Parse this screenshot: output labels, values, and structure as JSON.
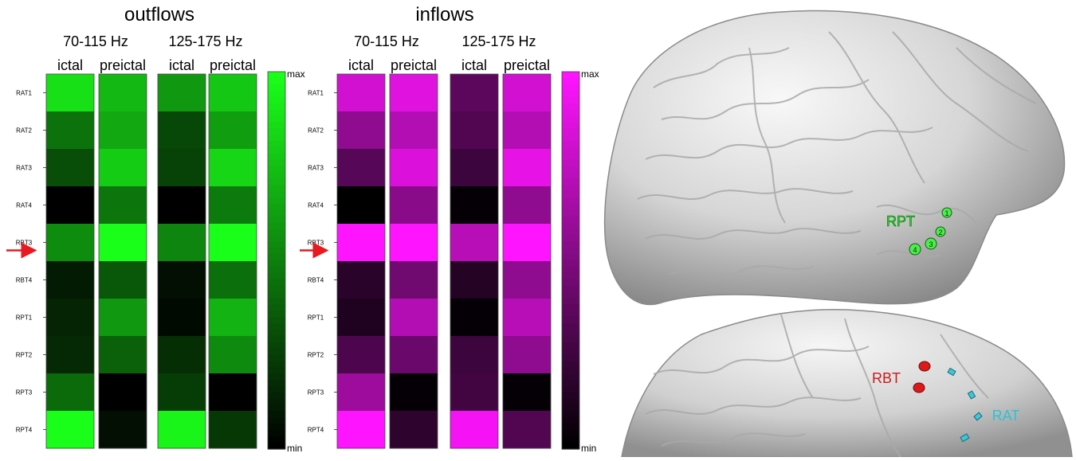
{
  "chart_data": [
    {
      "type": "heatmap",
      "title": "outflows",
      "bands": [
        "70-115 Hz",
        "125-175 Hz"
      ],
      "columns": [
        "ictal",
        "preictal",
        "ictal",
        "preictal"
      ],
      "rows": [
        "RAT1",
        "RAT2",
        "RAT3",
        "RAT4",
        "RBT3",
        "RBT4",
        "RPT1",
        "RPT2",
        "RPT3",
        "RPT4"
      ],
      "values": [
        [
          0.88,
          0.72,
          0.6,
          0.78
        ],
        [
          0.45,
          0.66,
          0.28,
          0.62
        ],
        [
          0.3,
          0.8,
          0.26,
          0.84
        ],
        [
          0.0,
          0.46,
          0.0,
          0.48
        ],
        [
          0.55,
          1.0,
          0.52,
          1.0
        ],
        [
          0.1,
          0.34,
          0.06,
          0.44
        ],
        [
          0.14,
          0.6,
          0.04,
          0.7
        ],
        [
          0.16,
          0.38,
          0.18,
          0.54
        ],
        [
          0.42,
          0.0,
          0.24,
          0.0
        ],
        [
          1.0,
          0.06,
          0.96,
          0.22
        ]
      ],
      "colormap": {
        "min_color": "#000000",
        "max_color": "#1aff1a"
      },
      "colorbar_labels": {
        "max": "max",
        "min": "min"
      },
      "highlight_row": "RBT3",
      "arrow_color": "#e8191f"
    },
    {
      "type": "heatmap",
      "title": "inflows",
      "bands": [
        "70-115 Hz",
        "125-175 Hz"
      ],
      "columns": [
        "ictal",
        "preictal",
        "ictal",
        "preictal"
      ],
      "rows": [
        "RAT1",
        "RAT2",
        "RAT3",
        "RAT4",
        "RBT3",
        "RBT4",
        "RPT1",
        "RPT2",
        "RPT3",
        "RPT4"
      ],
      "values": [
        [
          0.82,
          0.88,
          0.36,
          0.82
        ],
        [
          0.56,
          0.7,
          0.32,
          0.7
        ],
        [
          0.34,
          0.86,
          0.24,
          0.9
        ],
        [
          0.0,
          0.54,
          0.02,
          0.56
        ],
        [
          1.0,
          1.0,
          0.72,
          1.0
        ],
        [
          0.16,
          0.44,
          0.14,
          0.56
        ],
        [
          0.12,
          0.7,
          0.02,
          0.72
        ],
        [
          0.3,
          0.42,
          0.24,
          0.56
        ],
        [
          0.62,
          0.02,
          0.26,
          0.02
        ],
        [
          1.0,
          0.18,
          0.96,
          0.32
        ]
      ],
      "colormap": {
        "min_color": "#000000",
        "max_color": "#ff14ff"
      },
      "colorbar_labels": {
        "max": "max",
        "min": "min"
      },
      "highlight_row": "RBT3",
      "arrow_color": "#e8191f"
    }
  ],
  "brain": {
    "upper_label": "RPT",
    "upper_label_color": "#22dd22",
    "upper_contacts": [
      "1",
      "2",
      "3",
      "4"
    ],
    "lower_labels": [
      {
        "text": "RBT",
        "color": "#cc1a1a"
      },
      {
        "text": "RAT",
        "color": "#28c4d6"
      }
    ],
    "rbt_color": "#dd1a1a",
    "rat_color": "#3cc8da"
  }
}
